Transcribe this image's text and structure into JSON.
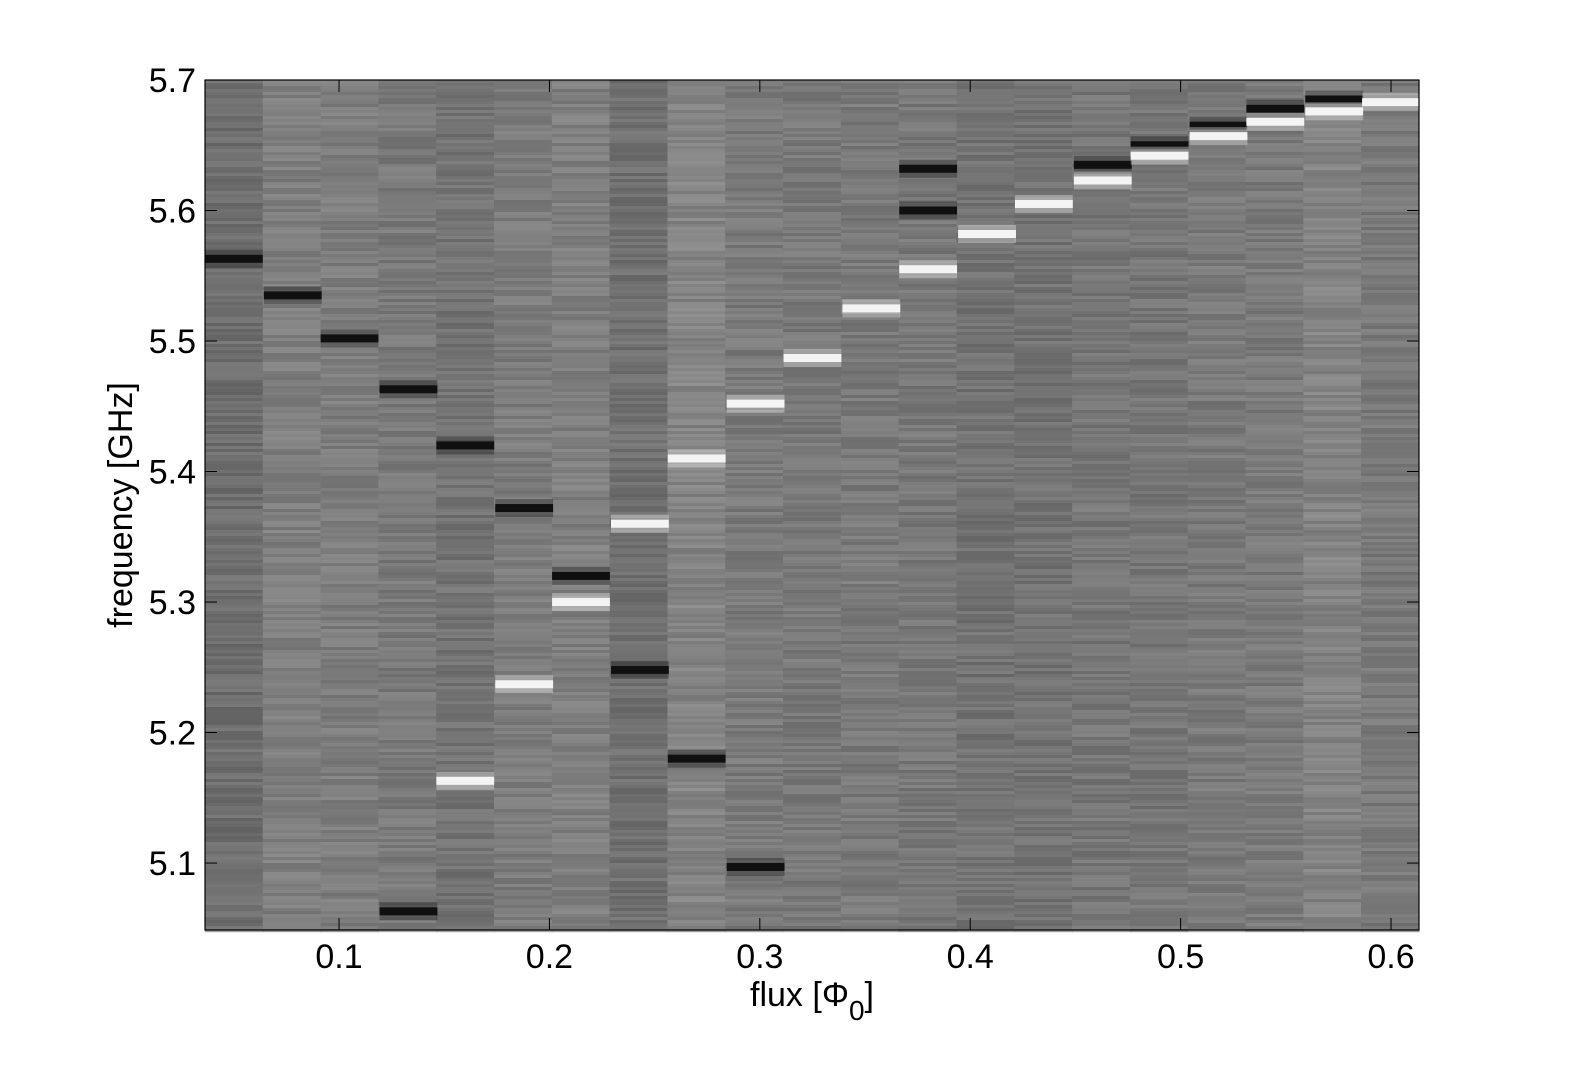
{
  "chart_data": {
    "type": "heatmap",
    "xlabel": [
      "flux [Φ",
      "0",
      "]"
    ],
    "ylabel": "frequency [GHz]",
    "xlim": [
      0.0363,
      0.6133
    ],
    "ylim": [
      5.0487,
      5.7
    ],
    "xticks": [
      0.1,
      0.2,
      0.3,
      0.4,
      0.5,
      0.6
    ],
    "yticks": [
      5.1,
      5.2,
      5.3,
      5.4,
      5.5,
      5.6,
      5.7
    ],
    "background": "#7b7b7b",
    "series": [
      {
        "color": "#101010",
        "x": [
          0.05,
          0.078,
          0.105,
          0.133,
          0.133,
          0.16,
          0.188,
          0.215,
          0.243,
          0.27,
          0.298,
          0.38,
          0.38,
          0.463,
          0.49,
          0.518,
          0.545,
          0.573
        ],
        "values": [
          5.563,
          5.535,
          5.502,
          5.463,
          5.063,
          5.42,
          5.372,
          5.32,
          5.248,
          5.18,
          5.097,
          5.6,
          5.632,
          5.635,
          5.65,
          5.665,
          5.678,
          5.685
        ]
      },
      {
        "color": "#f4f4f4",
        "x": [
          0.16,
          0.188,
          0.215,
          0.243,
          0.27,
          0.298,
          0.325,
          0.353,
          0.38,
          0.408,
          0.435,
          0.463,
          0.49,
          0.518,
          0.545,
          0.573,
          0.6
        ],
        "values": [
          5.163,
          5.237,
          5.3,
          5.36,
          5.41,
          5.452,
          5.487,
          5.525,
          5.555,
          5.582,
          5.605,
          5.623,
          5.642,
          5.657,
          5.668,
          5.676,
          5.683
        ]
      }
    ]
  }
}
